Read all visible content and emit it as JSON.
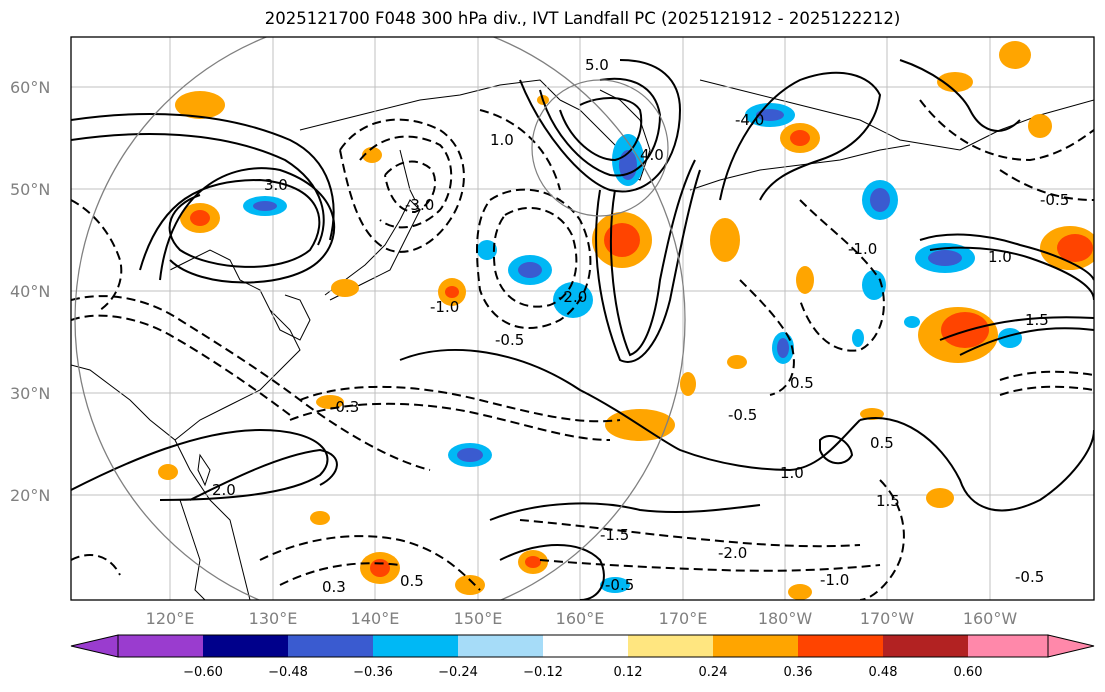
{
  "title": "2025121700 F048 300 hPa div., IVT Landfall PC (2025121912 - 2025122212)",
  "latitude_labels": [
    "60°N",
    "50°N",
    "40°N",
    "30°N",
    "20°N"
  ],
  "longitude_labels": [
    "120°E",
    "130°E",
    "140°E",
    "150°E",
    "160°E",
    "170°E",
    "180°W",
    "170°W",
    "160°W"
  ],
  "colorbar": {
    "ticks": [
      "−0.60",
      "−0.48",
      "−0.36",
      "−0.24",
      "−0.12",
      "0.12",
      "0.24",
      "0.36",
      "0.48",
      "0.60"
    ],
    "colors": {
      "below_min": "#9a3ccf",
      "neg_048_060": "#00008b",
      "neg_036_048": "#3a5bd0",
      "neg_024_036": "#00b8f5",
      "neg_012_024": "#a6dcf8",
      "neutral": "#ffffff",
      "pos_012_024": "#ffe680",
      "pos_024_036": "#ffa500",
      "pos_036_048": "#ff4400",
      "pos_048_060": "#b22222",
      "above_max": "#ff88aa"
    }
  },
  "contour_labels": [
    "-1.0",
    "0.5",
    "-0.5",
    "1.0",
    "2.0",
    "3.0",
    "-3.0",
    "4.0",
    "-4.0",
    "5.0",
    "-2.0",
    "1.5",
    "-1.5",
    "0.3",
    "-0.3"
  ]
}
